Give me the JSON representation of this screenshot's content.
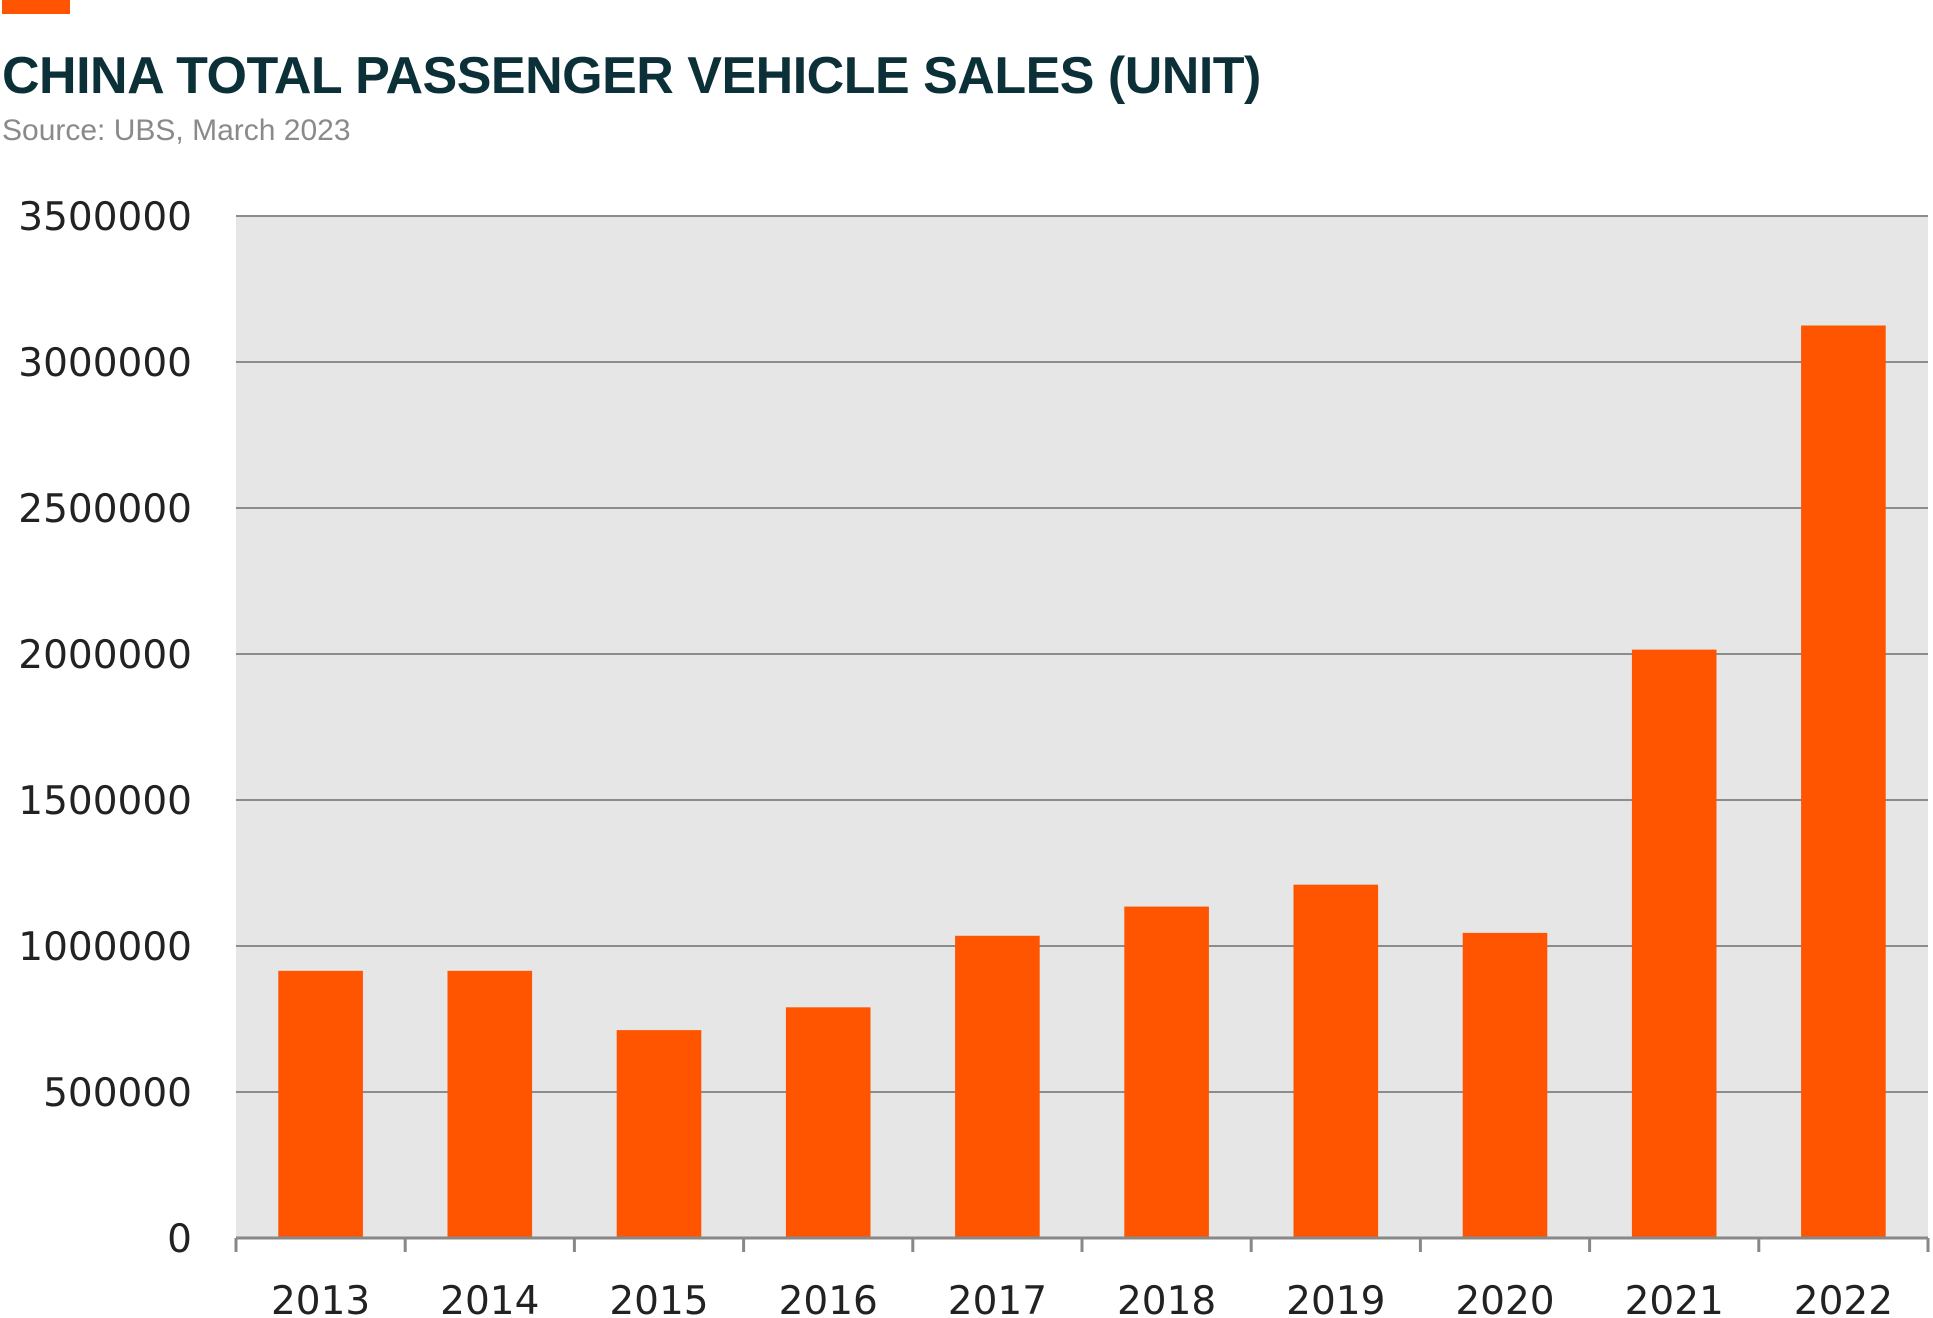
{
  "header": {
    "title": "CHINA TOTAL PASSENGER VEHICLE SALES (UNIT)",
    "subtitle": "Source: UBS, March 2023"
  },
  "colors": {
    "accent": "#ff5500",
    "title": "#0c3038",
    "plot_background": "#e6e6e6",
    "gridline": "#8c8c8c"
  },
  "chart_data": {
    "type": "bar",
    "title": "CHINA TOTAL PASSENGER VEHICLE SALES (UNIT)",
    "subtitle": "Source: UBS, March 2023",
    "xlabel": "",
    "ylabel": "",
    "categories": [
      "2013",
      "2014",
      "2015",
      "2016",
      "2017",
      "2018",
      "2019",
      "2020",
      "2021",
      "2022"
    ],
    "values": [
      915000,
      915000,
      712000,
      790000,
      1035000,
      1135000,
      1210000,
      1045000,
      2015000,
      3125000
    ],
    "ylim": [
      0,
      3500000
    ],
    "yticks": [
      0,
      500000,
      1000000,
      1500000,
      2000000,
      2500000,
      3000000,
      3500000
    ],
    "ytick_labels": [
      "0",
      "500000",
      "1000000",
      "1500000",
      "2000000",
      "2500000",
      "3000000",
      "3500000"
    ],
    "bar_color": "#ff5500",
    "grid": true,
    "legend": "none"
  }
}
